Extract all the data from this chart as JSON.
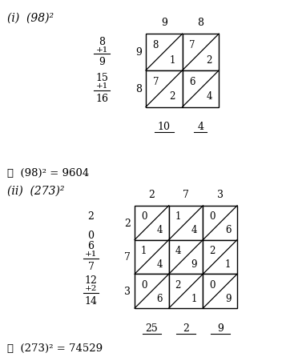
{
  "title1": "(i)  (98)²",
  "title2": "(ii)  (273)²",
  "result1": "∴  (98)² = 9604",
  "result2": "∴  (273)² = 74529",
  "grid1": {
    "col_labels": [
      "9",
      "8"
    ],
    "row_labels": [
      "9",
      "8"
    ],
    "cells": [
      [
        [
          "8",
          "1"
        ],
        [
          "7",
          "2"
        ]
      ],
      [
        [
          "7",
          "2"
        ],
        [
          "6",
          "4"
        ]
      ]
    ],
    "bottom_labels": [
      "10",
      "4"
    ]
  },
  "grid2": {
    "col_labels": [
      "2",
      "7",
      "3"
    ],
    "row_labels": [
      "2",
      "7",
      "3"
    ],
    "cells": [
      [
        [
          "0",
          "4"
        ],
        [
          "1",
          "4"
        ],
        [
          "0",
          "6"
        ]
      ],
      [
        [
          "1",
          "4"
        ],
        [
          "4",
          "9"
        ],
        [
          "2",
          "1"
        ]
      ],
      [
        [
          "0",
          "6"
        ],
        [
          "2",
          "1"
        ],
        [
          "0",
          "9"
        ]
      ]
    ],
    "bottom_labels": [
      "25",
      "2",
      "9"
    ]
  },
  "bg_color": "#ffffff",
  "text_color": "#000000",
  "line_color": "#000000"
}
